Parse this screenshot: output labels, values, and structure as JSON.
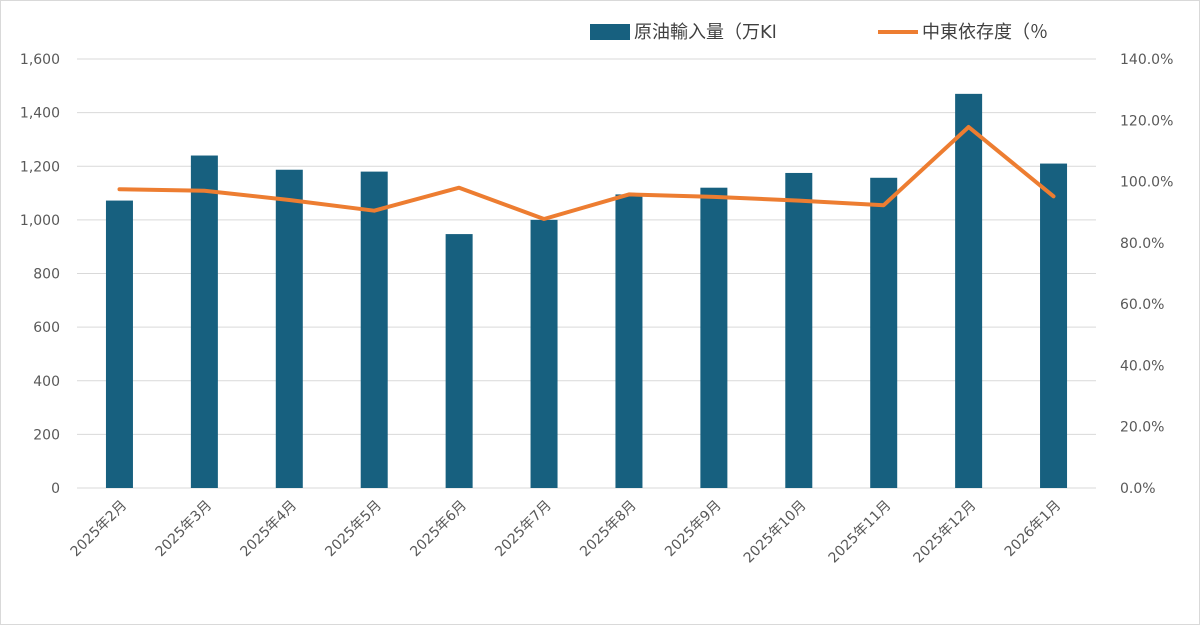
{
  "chart_data": {
    "type": "bar",
    "categories": [
      "2025年2月",
      "2025年3月",
      "2025年4月",
      "2025年5月",
      "2025年6月",
      "2025年7月",
      "2025年8月",
      "2025年9月",
      "2025年10月",
      "2025年11月",
      "2025年12月",
      "2026年1月"
    ],
    "series": [
      {
        "name": "原油輸入量（万Kl",
        "type": "bar",
        "axis": "left",
        "color": "#17607f",
        "values": [
          1072,
          1240,
          1187,
          1180,
          947,
          1000,
          1095,
          1120,
          1175,
          1157,
          1470,
          1210
        ]
      },
      {
        "name": "中東依存度（％",
        "type": "line",
        "axis": "right",
        "color": "#ed7d31",
        "values": [
          97.5,
          97.0,
          94.0,
          90.5,
          98.0,
          87.8,
          95.8,
          95.0,
          93.8,
          92.3,
          117.8,
          95.2
        ]
      }
    ],
    "y_left": {
      "lim": [
        0,
        1600
      ],
      "tick_values": [
        0,
        200,
        400,
        600,
        800,
        1000,
        1200,
        1400,
        1600
      ],
      "tick_labels": [
        "0",
        "200",
        "400",
        "600",
        "800",
        "1,000",
        "1,200",
        "1,400",
        "1,600"
      ]
    },
    "y_right": {
      "lim": [
        0,
        140
      ],
      "tick_values": [
        0,
        20,
        40,
        60,
        80,
        100,
        120,
        140
      ],
      "tick_labels": [
        "0.0%",
        "20.0%",
        "40.0%",
        "60.0%",
        "80.0%",
        "100.0%",
        "120.0%",
        "140.0%"
      ]
    },
    "title": "",
    "xlabel": "",
    "ylabel": "",
    "grid": true,
    "gridline_color": "#d9d9d9",
    "legend_position": "top-right"
  }
}
